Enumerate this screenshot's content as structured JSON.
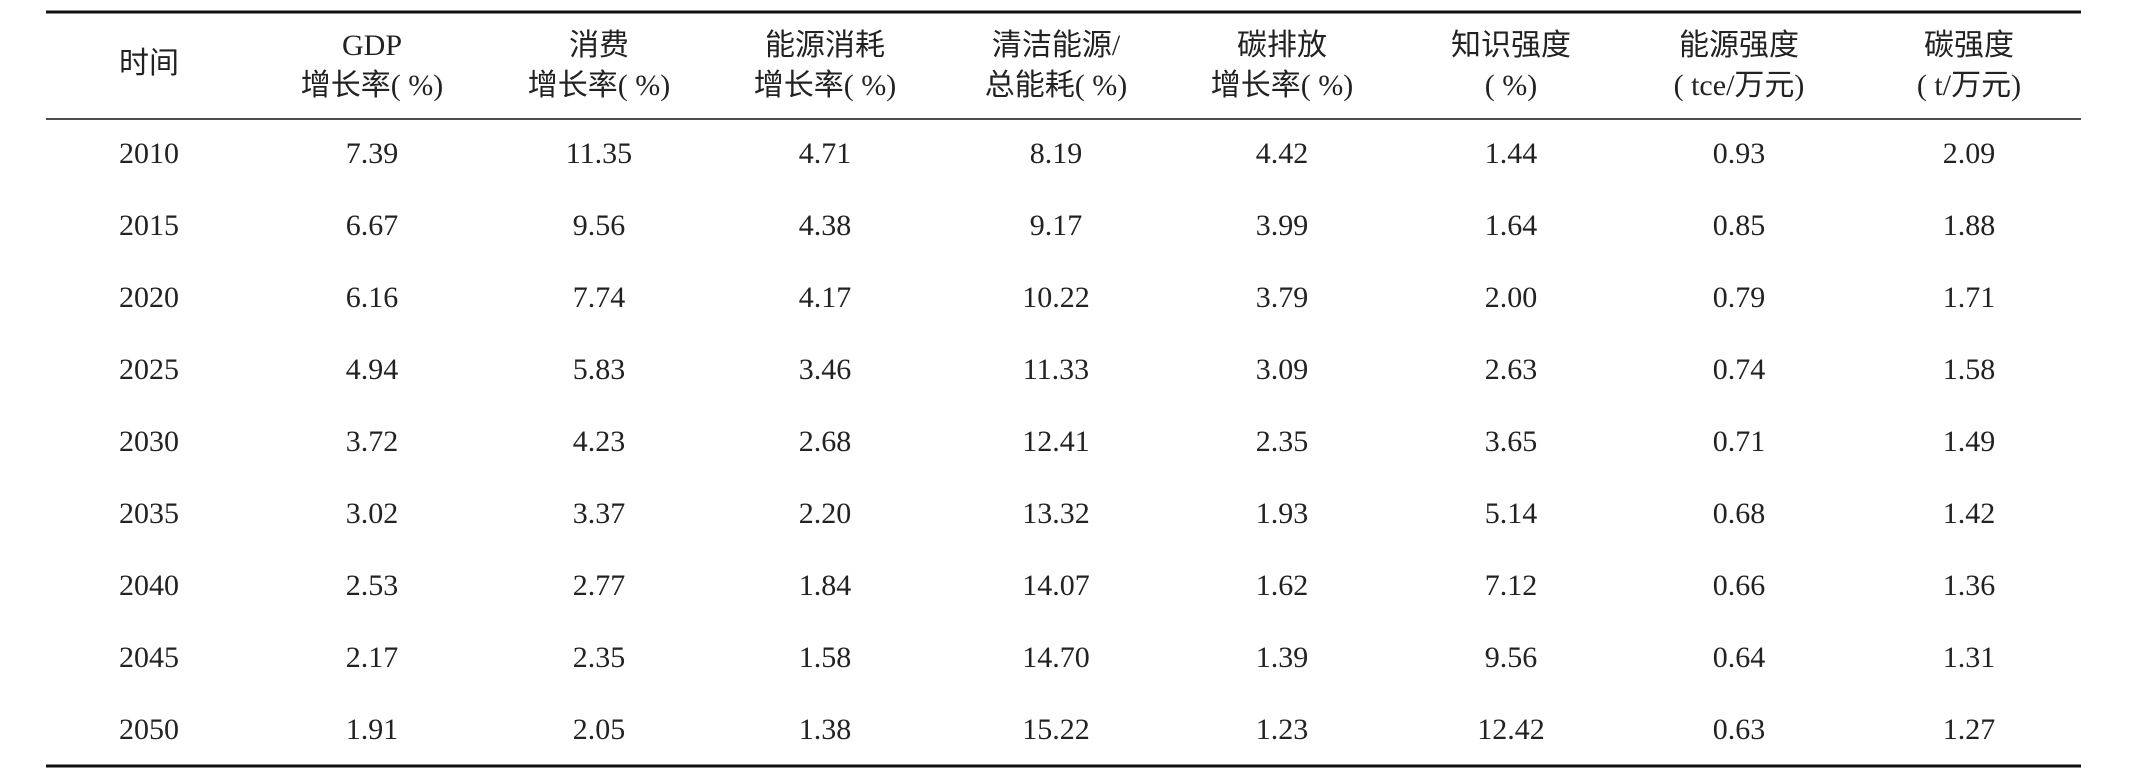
{
  "table": {
    "header": [
      [
        "时间"
      ],
      [
        "GDP",
        "增长率( %)"
      ],
      [
        "消费",
        "增长率( %)"
      ],
      [
        "能源消耗",
        "增长率( %)"
      ],
      [
        "清洁能源/",
        "总能耗( %)"
      ],
      [
        "碳排放",
        "增长率( %)"
      ],
      [
        "知识强度",
        "( %)"
      ],
      [
        "能源强度",
        "( tce/万元)"
      ],
      [
        "碳强度",
        "( t/万元)"
      ]
    ],
    "rows": [
      [
        "2010",
        "7.39",
        "11.35",
        "4.71",
        "8.19",
        "4.42",
        "1.44",
        "0.93",
        "2.09"
      ],
      [
        "2015",
        "6.67",
        "9.56",
        "4.38",
        "9.17",
        "3.99",
        "1.64",
        "0.85",
        "1.88"
      ],
      [
        "2020",
        "6.16",
        "7.74",
        "4.17",
        "10.22",
        "3.79",
        "2.00",
        "0.79",
        "1.71"
      ],
      [
        "2025",
        "4.94",
        "5.83",
        "3.46",
        "11.33",
        "3.09",
        "2.63",
        "0.74",
        "1.58"
      ],
      [
        "2030",
        "3.72",
        "4.23",
        "2.68",
        "12.41",
        "2.35",
        "3.65",
        "0.71",
        "1.49"
      ],
      [
        "2035",
        "3.02",
        "3.37",
        "2.20",
        "13.32",
        "1.93",
        "5.14",
        "0.68",
        "1.42"
      ],
      [
        "2040",
        "2.53",
        "2.77",
        "1.84",
        "14.07",
        "1.62",
        "7.12",
        "0.66",
        "1.36"
      ],
      [
        "2045",
        "2.17",
        "2.35",
        "1.58",
        "14.70",
        "1.39",
        "9.56",
        "0.64",
        "1.31"
      ],
      [
        "2050",
        "1.91",
        "2.05",
        "1.38",
        "15.22",
        "1.23",
        "12.42",
        "0.63",
        "1.27"
      ]
    ]
  }
}
